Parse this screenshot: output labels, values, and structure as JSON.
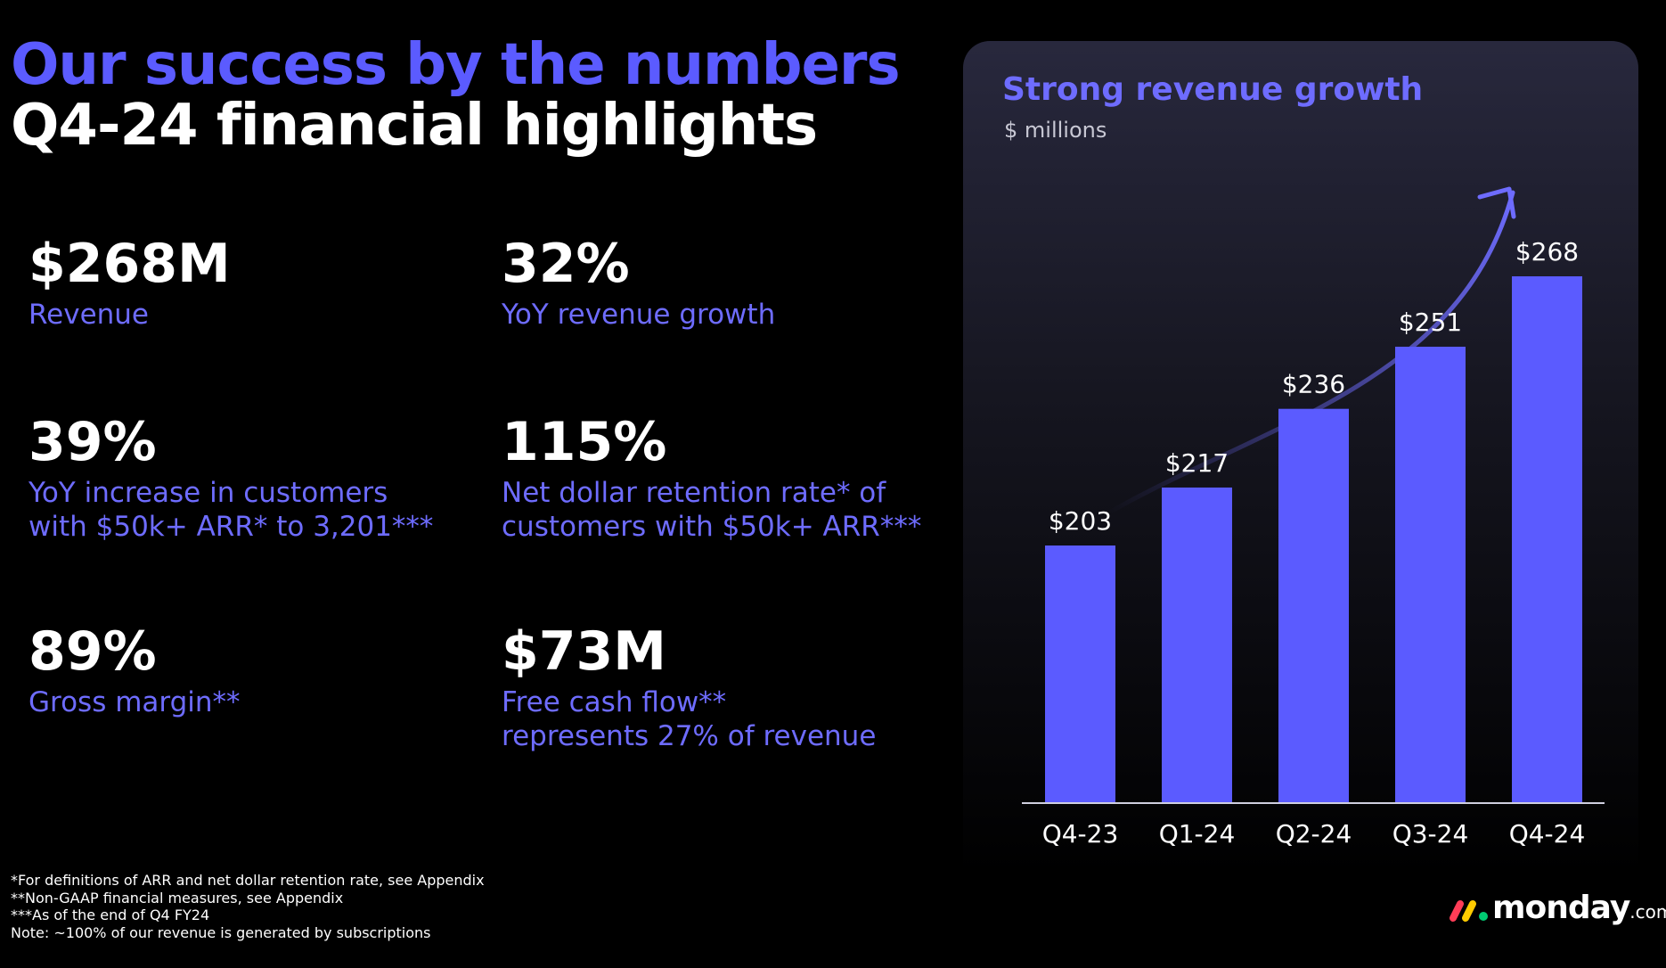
{
  "header": {
    "title_line1": "Our success by the numbers",
    "title_line2": "Q4-24 financial highlights"
  },
  "metrics": [
    {
      "value": "$268M",
      "label_lines": [
        "Revenue"
      ]
    },
    {
      "value": "32%",
      "label_lines": [
        "YoY revenue growth"
      ]
    },
    {
      "value": "39%",
      "label_lines": [
        "YoY increase in customers",
        "with $50k+ ARR* to 3,201***"
      ]
    },
    {
      "value": "115%",
      "label_lines": [
        "Net dollar retention rate* of",
        "customers with $50k+ ARR***"
      ]
    },
    {
      "value": "89%",
      "label_lines": [
        "Gross margin**"
      ]
    },
    {
      "value": "$73M",
      "label_lines": [
        "Free cash flow**",
        "represents 27% of revenue"
      ]
    }
  ],
  "footnotes": [
    "*For definitions of ARR and net dollar retention rate, see Appendix",
    "**Non-GAAP financial measures, see Appendix",
    "***As of the end of Q4 FY24",
    "Note: ~100% of our revenue is generated by subscriptions"
  ],
  "chart_data": {
    "type": "bar",
    "title": "Strong revenue growth",
    "unit": "$ millions",
    "categories": [
      "Q4-23",
      "Q1-24",
      "Q2-24",
      "Q3-24",
      "Q4-24"
    ],
    "values": [
      203,
      217,
      236,
      251,
      268
    ],
    "data_labels": [
      "$203",
      "$217",
      "$236",
      "$251",
      "$268"
    ],
    "ylim": [
      0,
      300
    ],
    "grid": false,
    "colors": {
      "bar": "#5b5bff",
      "accent": "#6e6cff",
      "axis": "#cfcfe0"
    }
  },
  "logo": {
    "text": "monday",
    "suffix": ".com"
  }
}
